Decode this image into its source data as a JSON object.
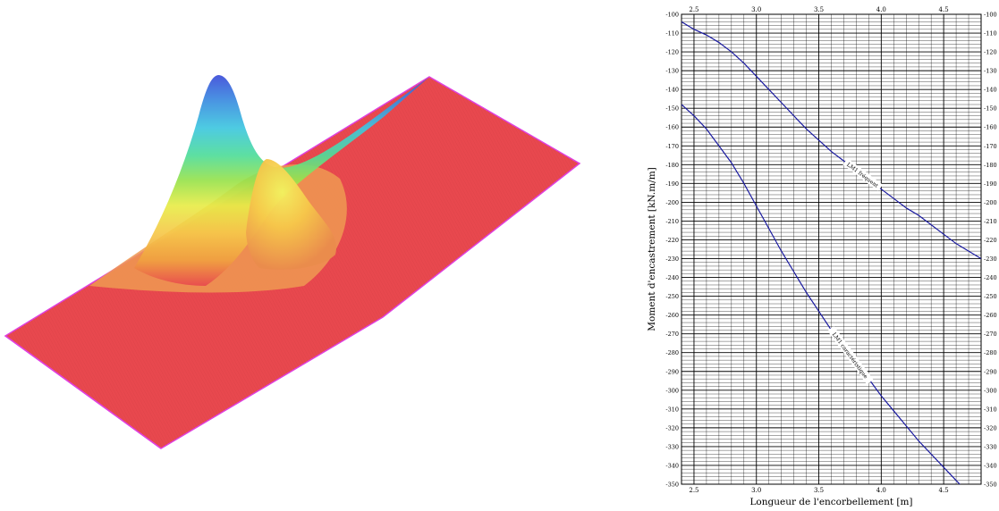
{
  "surface": {
    "colors": {
      "base": "#e8484e",
      "edge": "#e040e0",
      "ramp": [
        "#3b4bd8",
        "#3a8be0",
        "#3ec6e0",
        "#4fdc9a",
        "#98e24c",
        "#e8ec48",
        "#f6c84a",
        "#f0a040",
        "#e8484e"
      ]
    }
  },
  "chart_data": {
    "type": "line",
    "title": "",
    "xlabel": "Longueur de l'encorbellement [m]",
    "ylabel": "Moment d'encastrement [kN.m/m]",
    "xlim": [
      2.4,
      4.8
    ],
    "ylim": [
      -350,
      -100
    ],
    "x_ticks": [
      "2.5",
      "3.0",
      "3.5",
      "4.0",
      "4.5"
    ],
    "y_ticks": [
      "-100",
      "-110",
      "-120",
      "-130",
      "-140",
      "-150",
      "-160",
      "-170",
      "-180",
      "-190",
      "-200",
      "-210",
      "-220",
      "-230",
      "-240",
      "-250",
      "-260",
      "-270",
      "-280",
      "-290",
      "-300",
      "-310",
      "-320",
      "-330",
      "-340",
      "-350"
    ],
    "grid": true,
    "line_color": "#1a1aa0",
    "series": [
      {
        "name": "LM1 fréquent",
        "x": [
          2.4,
          2.5,
          2.6,
          2.7,
          2.8,
          2.9,
          3.0,
          3.1,
          3.2,
          3.3,
          3.4,
          3.5,
          3.6,
          3.7,
          3.8,
          3.9,
          4.0,
          4.1,
          4.2,
          4.3,
          4.4,
          4.5,
          4.6,
          4.7,
          4.8
        ],
        "values": [
          -104,
          -108,
          -111,
          -115,
          -120,
          -126,
          -133,
          -140,
          -147,
          -154,
          -161,
          -167,
          -173,
          -178,
          -183,
          -188,
          -193,
          -198,
          -203,
          -207,
          -212,
          -217,
          -222,
          -226,
          -230
        ]
      },
      {
        "name": "LM1 caractéristique",
        "x": [
          2.4,
          2.5,
          2.6,
          2.7,
          2.8,
          2.9,
          3.0,
          3.1,
          3.2,
          3.3,
          3.4,
          3.5,
          3.6,
          3.7,
          3.8,
          3.9,
          4.0,
          4.1,
          4.2,
          4.3,
          4.4,
          4.5,
          4.6,
          4.7,
          4.8
        ],
        "values": [
          -148,
          -154,
          -161,
          -170,
          -179,
          -190,
          -202,
          -214,
          -226,
          -237,
          -248,
          -258,
          -268,
          -277,
          -286,
          -294,
          -303,
          -311,
          -319,
          -327,
          -334,
          -341,
          -348,
          -355,
          -361
        ]
      }
    ]
  }
}
